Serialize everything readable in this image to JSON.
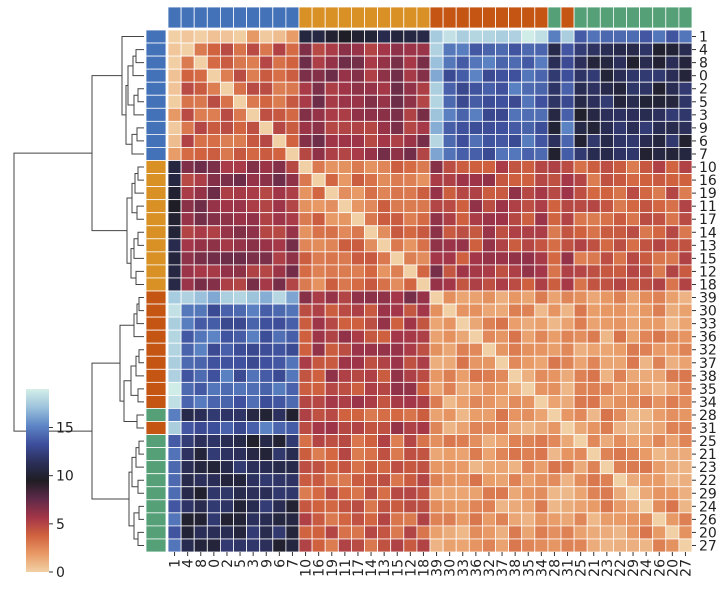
{
  "chart_data": {
    "type": "heatmap",
    "title": "",
    "xlabel": "",
    "ylabel": "",
    "order": [
      "1",
      "4",
      "8",
      "0",
      "2",
      "5",
      "3",
      "9",
      "6",
      "7",
      "10",
      "16",
      "19",
      "11",
      "17",
      "14",
      "13",
      "15",
      "12",
      "18",
      "39",
      "30",
      "33",
      "36",
      "32",
      "37",
      "38",
      "35",
      "34",
      "28",
      "31",
      "25",
      "21",
      "23",
      "22",
      "29",
      "24",
      "26",
      "20",
      "27"
    ],
    "group_colors": {
      "A": "#4472b8",
      "B": "#d99126",
      "C": "#c45513",
      "D": "#55a077"
    },
    "row_groups": [
      "A",
      "A",
      "A",
      "A",
      "A",
      "A",
      "A",
      "A",
      "A",
      "A",
      "B",
      "B",
      "B",
      "B",
      "B",
      "B",
      "B",
      "B",
      "B",
      "B",
      "C",
      "C",
      "C",
      "C",
      "C",
      "C",
      "C",
      "C",
      "C",
      "D",
      "C",
      "D",
      "D",
      "D",
      "D",
      "D",
      "D",
      "D",
      "D",
      "D"
    ],
    "col_groups": [
      "A",
      "A",
      "A",
      "A",
      "A",
      "A",
      "A",
      "A",
      "A",
      "A",
      "B",
      "B",
      "B",
      "B",
      "B",
      "B",
      "B",
      "B",
      "B",
      "B",
      "C",
      "C",
      "C",
      "C",
      "C",
      "C",
      "C",
      "C",
      "C",
      "D",
      "C",
      "D",
      "D",
      "D",
      "D",
      "D",
      "D",
      "D",
      "D",
      "D"
    ],
    "block_values": {
      "A-A": 4,
      "A-B": 6,
      "A-C": 14,
      "A-D": 11,
      "B-A": 6,
      "B-B": 3,
      "B-C": 5,
      "B-D": 4,
      "C-A": 14,
      "C-B": 5,
      "C-C": 2,
      "C-D": 2,
      "D-A": 11,
      "D-B": 4,
      "D-C": 2,
      "D-D": 2
    },
    "special_rows": {
      "1": {
        "A": 1,
        "B": 10,
        "C": 18,
        "D": 14
      },
      "39": {
        "A": 17,
        "B": 6,
        "C": 2,
        "D": 2
      }
    },
    "colorbar": {
      "min": 0,
      "max": 19,
      "ticks": [
        0,
        5,
        10,
        15
      ]
    },
    "palette": [
      "#f2d0a6",
      "#e89a66",
      "#d0623f",
      "#a23548",
      "#5e2a48",
      "#1f1d24",
      "#2b2f5a",
      "#3e4f9c",
      "#5d86c6",
      "#9cc2dc",
      "#d4efe8"
    ]
  }
}
